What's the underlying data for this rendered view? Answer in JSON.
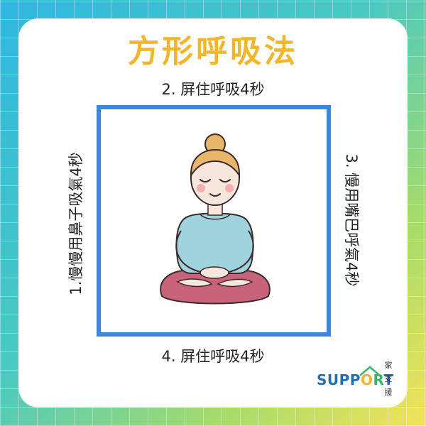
{
  "title": "方形呼吸法",
  "steps": {
    "step1": "1.慢慢用鼻子吸氣4秒",
    "step2": "2. 屏住呼吸4秒",
    "step3": "3. 慢用嘴巴呼氣4秒",
    "step4": "4. 屏住呼吸4秒"
  },
  "logo": {
    "word_a": "SUPP",
    "word_o": "O",
    "word_r": "R",
    "word_t": "T",
    "side": [
      "家",
      "支",
      "援"
    ]
  },
  "colors": {
    "title": "#f2b52b",
    "square_border": "#3a86e0",
    "card": "#ffffff"
  }
}
